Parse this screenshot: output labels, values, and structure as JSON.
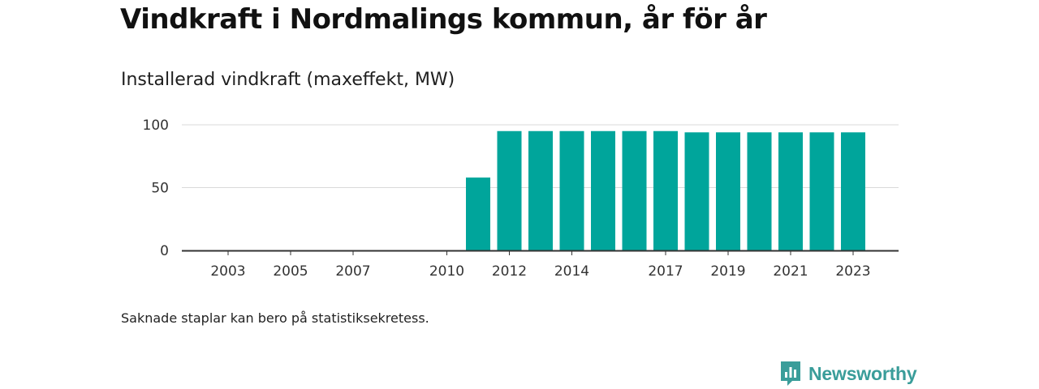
{
  "header": {
    "title": "Vindkraft i Nordmalings kommun, år för år",
    "subtitle": "Installerad vindkraft (maxeffekt, MW)"
  },
  "footer": {
    "note": "Saknade staplar kan bero på statistiksekretess.",
    "brand": "Newsworthy"
  },
  "colors": {
    "bar": "#00a59b",
    "grid": "#d9d9d9",
    "axis": "#333333",
    "brand": "#3a9d9a"
  },
  "chart_data": {
    "type": "bar",
    "categories": [
      "2002",
      "2003",
      "2004",
      "2005",
      "2006",
      "2007",
      "2008",
      "2009",
      "2010",
      "2011",
      "2012",
      "2013",
      "2014",
      "2015",
      "2016",
      "2017",
      "2018",
      "2019",
      "2020",
      "2021",
      "2022",
      "2023"
    ],
    "values": [
      0,
      0,
      0,
      0,
      0,
      0,
      0,
      0,
      0,
      58,
      95,
      95,
      95,
      95,
      95,
      95,
      94,
      94,
      94,
      94,
      94,
      94
    ],
    "x_tick_labels": [
      "2003",
      "2005",
      "2007",
      "2010",
      "2012",
      "2014",
      "2017",
      "2019",
      "2021",
      "2023"
    ],
    "y_ticks": [
      "0",
      "50",
      "100"
    ],
    "ylim": [
      0,
      100
    ],
    "xlabel": "",
    "ylabel": "",
    "grid": true,
    "legend": "none"
  }
}
